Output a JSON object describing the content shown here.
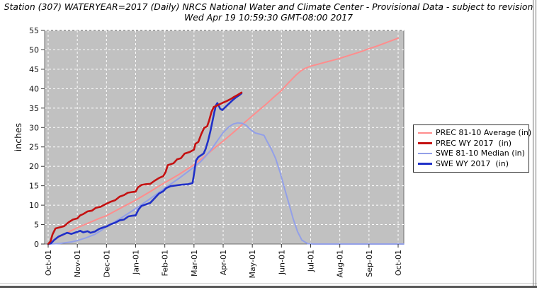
{
  "chart_data": {
    "type": "line",
    "title": "Station (307) WATERYEAR=2017 (Daily) NRCS National Water and Climate Center - Provisional Data - subject to revision",
    "subtitle": "Wed Apr 19 10:59:30 GMT-08:00 2017",
    "ylabel": "inches",
    "ylim": [
      0,
      55
    ],
    "y_ticks": [
      0,
      5,
      10,
      15,
      20,
      25,
      30,
      35,
      40,
      45,
      50,
      55
    ],
    "x_tick_labels": [
      "Oct-01",
      "Nov-01",
      "Dec-01",
      "Jan-01",
      "Feb-01",
      "Mar-01",
      "Apr-01",
      "May-01",
      "Jun-01",
      "Jul-01",
      "Aug-01",
      "Sep-01",
      "Oct-01"
    ],
    "x_unit_note": "x in months after Oct-01",
    "grid": true,
    "legend_position": "right",
    "plot_bg": "#c1c1c1",
    "grid_color": "#ffffff",
    "series": [
      {
        "name": "PREC 81-10 Average (in)",
        "color": "#ff8d8d",
        "width": 2,
        "points": [
          [
            0,
            0
          ],
          [
            0.1,
            0.6
          ],
          [
            0.25,
            1.3
          ],
          [
            0.5,
            2.3
          ],
          [
            0.75,
            3.3
          ],
          [
            1,
            4.2
          ],
          [
            1.25,
            5
          ],
          [
            1.5,
            5.8
          ],
          [
            1.75,
            6.6
          ],
          [
            2,
            7.3
          ],
          [
            2.25,
            8.3
          ],
          [
            2.5,
            9.3
          ],
          [
            2.75,
            10.3
          ],
          [
            3,
            11.3
          ],
          [
            3.25,
            12.4
          ],
          [
            3.5,
            13.5
          ],
          [
            3.75,
            14.7
          ],
          [
            4,
            15.8
          ],
          [
            4.25,
            16.9
          ],
          [
            4.5,
            18
          ],
          [
            4.75,
            19.2
          ],
          [
            5,
            20.4
          ],
          [
            5.25,
            21.9
          ],
          [
            5.5,
            23.4
          ],
          [
            5.75,
            25
          ],
          [
            6,
            26.5
          ],
          [
            6.25,
            28.1
          ],
          [
            6.5,
            29.7
          ],
          [
            6.75,
            31.4
          ],
          [
            7,
            33
          ],
          [
            7.25,
            34.6
          ],
          [
            7.5,
            36.2
          ],
          [
            7.75,
            37.9
          ],
          [
            8,
            39.5
          ],
          [
            8.15,
            40.8
          ],
          [
            8.3,
            42
          ],
          [
            8.5,
            43.5
          ],
          [
            8.65,
            44.5
          ],
          [
            8.8,
            45.2
          ],
          [
            9,
            45.8
          ],
          [
            9.25,
            46.3
          ],
          [
            9.5,
            46.8
          ],
          [
            9.75,
            47.3
          ],
          [
            10,
            47.8
          ],
          [
            10.25,
            48.4
          ],
          [
            10.5,
            49
          ],
          [
            10.75,
            49.6
          ],
          [
            11,
            50.3
          ],
          [
            11.25,
            50.9
          ],
          [
            11.5,
            51.6
          ],
          [
            11.75,
            52.3
          ],
          [
            12,
            53
          ]
        ]
      },
      {
        "name": "PREC WY 2017  (in)",
        "color": "#c41111",
        "width": 2.6,
        "points": [
          [
            0,
            0
          ],
          [
            0.08,
            0.7
          ],
          [
            0.15,
            2.5
          ],
          [
            0.25,
            4
          ],
          [
            0.4,
            4.3
          ],
          [
            0.55,
            4.6
          ],
          [
            0.7,
            5.6
          ],
          [
            0.85,
            6.3
          ],
          [
            1,
            6.6
          ],
          [
            1.1,
            7.4
          ],
          [
            1.2,
            7.7
          ],
          [
            1.35,
            8.4
          ],
          [
            1.5,
            8.6
          ],
          [
            1.63,
            9.3
          ],
          [
            1.8,
            9.6
          ],
          [
            1.95,
            10.2
          ],
          [
            2.15,
            10.9
          ],
          [
            2.3,
            11.3
          ],
          [
            2.45,
            12.2
          ],
          [
            2.6,
            12.6
          ],
          [
            2.73,
            13.2
          ],
          [
            2.9,
            13.4
          ],
          [
            3,
            13.5
          ],
          [
            3.08,
            14.6
          ],
          [
            3.2,
            15.2
          ],
          [
            3.35,
            15.4
          ],
          [
            3.5,
            15.5
          ],
          [
            3.65,
            16.3
          ],
          [
            3.8,
            17
          ],
          [
            3.95,
            17.5
          ],
          [
            4.03,
            18.6
          ],
          [
            4.1,
            20.3
          ],
          [
            4.3,
            20.8
          ],
          [
            4.42,
            21.8
          ],
          [
            4.55,
            22.1
          ],
          [
            4.68,
            23.3
          ],
          [
            4.85,
            23.7
          ],
          [
            5,
            24.3
          ],
          [
            5.05,
            25.8
          ],
          [
            5.15,
            26.3
          ],
          [
            5.25,
            28.3
          ],
          [
            5.35,
            29.9
          ],
          [
            5.45,
            30.3
          ],
          [
            5.52,
            31.8
          ],
          [
            5.6,
            34
          ],
          [
            5.68,
            35.3
          ],
          [
            5.78,
            35.6
          ],
          [
            5.88,
            36
          ],
          [
            6,
            36.4
          ],
          [
            6.12,
            36.8
          ],
          [
            6.25,
            37.3
          ],
          [
            6.38,
            37.9
          ],
          [
            6.5,
            38.4
          ],
          [
            6.63,
            39
          ]
        ]
      },
      {
        "name": "SWE 81-10 Median (in)",
        "color": "#93a0e8",
        "width": 2,
        "points": [
          [
            0,
            0
          ],
          [
            0.4,
            0.15
          ],
          [
            0.8,
            0.55
          ],
          [
            1,
            0.9
          ],
          [
            1.3,
            1.6
          ],
          [
            1.6,
            2.5
          ],
          [
            1.8,
            3.4
          ],
          [
            2,
            4.5
          ],
          [
            2.25,
            5.6
          ],
          [
            2.5,
            6.7
          ],
          [
            2.75,
            7.9
          ],
          [
            3,
            9.1
          ],
          [
            3.25,
            10.4
          ],
          [
            3.5,
            11.7
          ],
          [
            3.75,
            13
          ],
          [
            4,
            14.4
          ],
          [
            4.25,
            15.7
          ],
          [
            4.5,
            17
          ],
          [
            4.75,
            18.4
          ],
          [
            5,
            19.8
          ],
          [
            5.2,
            21
          ],
          [
            5.4,
            22.6
          ],
          [
            5.6,
            24.4
          ],
          [
            5.8,
            26.6
          ],
          [
            6,
            28.7
          ],
          [
            6.2,
            30.2
          ],
          [
            6.35,
            30.9
          ],
          [
            6.5,
            31.2
          ],
          [
            6.65,
            31.1
          ],
          [
            6.8,
            30.5
          ],
          [
            6.95,
            29.4
          ],
          [
            7.1,
            28.6
          ],
          [
            7.25,
            28.3
          ],
          [
            7.4,
            28
          ],
          [
            7.5,
            26.5
          ],
          [
            7.65,
            24.5
          ],
          [
            7.8,
            22
          ],
          [
            7.95,
            18.5
          ],
          [
            8.1,
            14.5
          ],
          [
            8.25,
            10.5
          ],
          [
            8.4,
            6.5
          ],
          [
            8.55,
            3.2
          ],
          [
            8.7,
            1
          ],
          [
            8.9,
            0.1
          ],
          [
            9.1,
            0
          ],
          [
            12.19,
            0
          ]
        ]
      },
      {
        "name": "SWE WY 2017  (in)",
        "color": "#2030c8",
        "width": 2.6,
        "points": [
          [
            0,
            0
          ],
          [
            0.1,
            0.2
          ],
          [
            0.2,
            1
          ],
          [
            0.35,
            1.9
          ],
          [
            0.5,
            2.4
          ],
          [
            0.65,
            2.9
          ],
          [
            0.8,
            2.6
          ],
          [
            0.95,
            3
          ],
          [
            1.1,
            3.4
          ],
          [
            1.2,
            3
          ],
          [
            1.35,
            3.3
          ],
          [
            1.45,
            2.9
          ],
          [
            1.6,
            3.2
          ],
          [
            1.75,
            3.9
          ],
          [
            1.9,
            4.3
          ],
          [
            2,
            4.5
          ],
          [
            2.15,
            5.1
          ],
          [
            2.3,
            5.5
          ],
          [
            2.45,
            6.1
          ],
          [
            2.6,
            6.3
          ],
          [
            2.75,
            7.1
          ],
          [
            2.9,
            7.3
          ],
          [
            3,
            7.4
          ],
          [
            3.1,
            8.9
          ],
          [
            3.2,
            9.8
          ],
          [
            3.35,
            10.2
          ],
          [
            3.5,
            10.6
          ],
          [
            3.65,
            11.8
          ],
          [
            3.8,
            13
          ],
          [
            3.95,
            13.6
          ],
          [
            4.05,
            14.4
          ],
          [
            4.2,
            14.9
          ],
          [
            4.4,
            15.1
          ],
          [
            4.6,
            15.3
          ],
          [
            4.8,
            15.4
          ],
          [
            4.95,
            15.7
          ],
          [
            5,
            18
          ],
          [
            5.07,
            21.5
          ],
          [
            5.15,
            22.4
          ],
          [
            5.25,
            22.9
          ],
          [
            5.33,
            23.3
          ],
          [
            5.4,
            24.5
          ],
          [
            5.48,
            26.5
          ],
          [
            5.56,
            29
          ],
          [
            5.63,
            31.5
          ],
          [
            5.7,
            34
          ],
          [
            5.76,
            35.8
          ],
          [
            5.8,
            36.3
          ],
          [
            5.85,
            35.6
          ],
          [
            5.9,
            34.8
          ],
          [
            5.97,
            34.5
          ],
          [
            6.05,
            35.1
          ],
          [
            6.15,
            35.8
          ],
          [
            6.25,
            36.5
          ],
          [
            6.35,
            37.2
          ],
          [
            6.45,
            37.8
          ],
          [
            6.55,
            38.3
          ],
          [
            6.63,
            38.8
          ]
        ]
      }
    ]
  }
}
